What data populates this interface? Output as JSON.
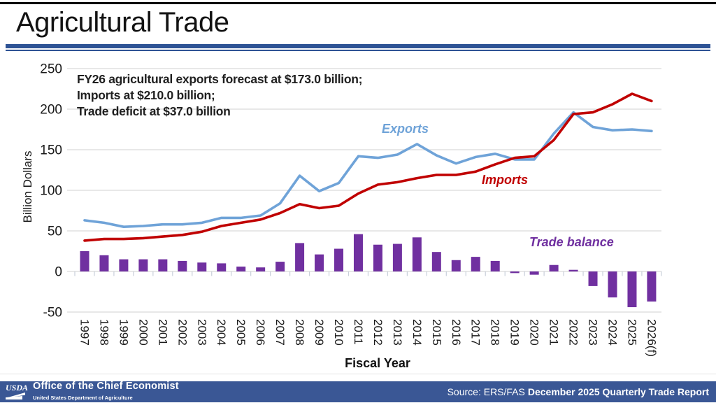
{
  "title": "Agricultural Trade",
  "annotation": {
    "line1": "FY26 agricultural exports forecast at $173.0 billion;",
    "line2": "Imports at $210.0 billion;",
    "line3": "Trade deficit at $37.0 billion"
  },
  "series_labels": {
    "exports": "Exports",
    "imports": "Imports",
    "balance": "Trade balance"
  },
  "footer": {
    "logo_text": "USDA",
    "org": "Office of the Chief Economist",
    "org_sub": "United States Department of Agriculture",
    "source_prefix": "Source: ERS/FAS",
    "source_report": "December 2025 Quarterly Trade Report"
  },
  "colors": {
    "exports_line": "#6FA3D8",
    "imports_line": "#C00000",
    "balance_bar": "#7030A0",
    "gridline": "#D9D9D9",
    "axis_tick": "#C8CFDA",
    "rule_blue": "#2E5395",
    "footer_bg": "#3A5795",
    "text_dark": "#1a1a1a"
  },
  "chart_data": {
    "type": "combo line+bar",
    "title": "Agricultural Trade",
    "xlabel": "Fiscal Year",
    "ylabel": "Billion Dollars",
    "ylim": [
      -50,
      250
    ],
    "y_ticks": [
      250,
      200,
      150,
      100,
      50,
      0,
      -50
    ],
    "grid": true,
    "legend_position": "inline series annotations",
    "categories": [
      "1997",
      "1998",
      "1999",
      "2000",
      "2001",
      "2002",
      "2003",
      "2004",
      "2005",
      "2006",
      "2007",
      "2008",
      "2009",
      "2010",
      "2011",
      "2012",
      "2013",
      "2014",
      "2015",
      "2016",
      "2017",
      "2018",
      "2019",
      "2020",
      "2021",
      "2022",
      "2023",
      "2024",
      "2025",
      "2026(f)"
    ],
    "series": [
      {
        "name": "Exports",
        "type": "line",
        "color": "#6FA3D8",
        "values": [
          63,
          60,
          55,
          56,
          58,
          58,
          60,
          66,
          66,
          69,
          84,
          118,
          99,
          109,
          142,
          140,
          144,
          157,
          143,
          133,
          141,
          145,
          138,
          138,
          170,
          196,
          178,
          174,
          175,
          173
        ]
      },
      {
        "name": "Imports",
        "type": "line",
        "color": "#C00000",
        "values": [
          38,
          40,
          40,
          41,
          43,
          45,
          49,
          56,
          60,
          64,
          72,
          83,
          78,
          81,
          96,
          107,
          110,
          115,
          119,
          119,
          123,
          132,
          140,
          142,
          162,
          194,
          196,
          206,
          219,
          210
        ]
      },
      {
        "name": "Trade balance",
        "type": "bar",
        "color": "#7030A0",
        "values": [
          25,
          20,
          15,
          15,
          15,
          13,
          11,
          10,
          6,
          5,
          12,
          35,
          21,
          28,
          46,
          33,
          34,
          42,
          24,
          14,
          18,
          13,
          -2,
          -4,
          8,
          2,
          -18,
          -32,
          -44,
          -37
        ]
      }
    ]
  }
}
